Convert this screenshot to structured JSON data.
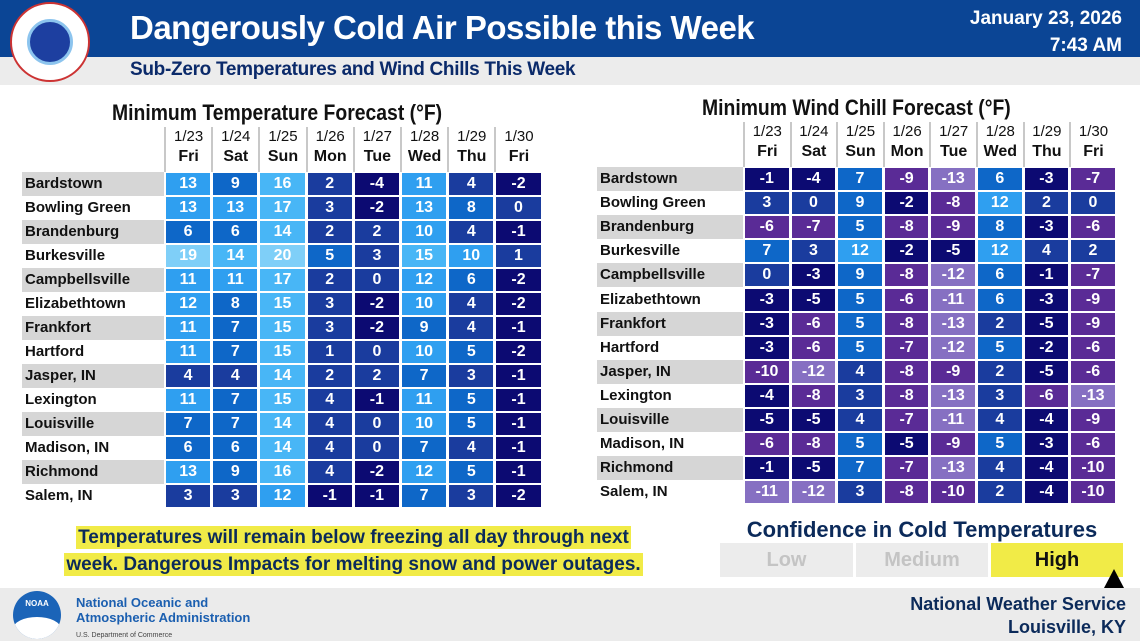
{
  "header": {
    "title": "Dangerously Cold Air Possible this Week",
    "subtitle": "Sub-Zero Temperatures and Wind Chills This Week",
    "date": "January 23, 2026",
    "time": "7:43 AM",
    "logo_text": "NATIONAL WEATHER SERVICE"
  },
  "columns": [
    {
      "date": "1/23",
      "day": "Fri"
    },
    {
      "date": "1/24",
      "day": "Sat"
    },
    {
      "date": "1/25",
      "day": "Sun"
    },
    {
      "date": "1/26",
      "day": "Mon"
    },
    {
      "date": "1/27",
      "day": "Tue"
    },
    {
      "date": "1/28",
      "day": "Wed"
    },
    {
      "date": "1/29",
      "day": "Thu"
    },
    {
      "date": "1/30",
      "day": "Fri"
    }
  ],
  "cities": [
    "Bardstown",
    "Bowling Green",
    "Brandenburg",
    "Burkesville",
    "Campbellsville",
    "Elizabethtown",
    "Frankfort",
    "Hartford",
    "Jasper, IN",
    "Lexington",
    "Louisville",
    "Madison, IN",
    "Richmond",
    "Salem, IN"
  ],
  "min_temp": {
    "title": "Minimum Temperature Forecast (°F)",
    "values": [
      [
        13,
        9,
        16,
        2,
        -4,
        11,
        4,
        -2
      ],
      [
        13,
        13,
        17,
        3,
        -2,
        13,
        8,
        0
      ],
      [
        6,
        6,
        14,
        2,
        2,
        10,
        4,
        -1
      ],
      [
        19,
        14,
        20,
        5,
        3,
        15,
        10,
        1
      ],
      [
        11,
        11,
        17,
        2,
        0,
        12,
        6,
        -2
      ],
      [
        12,
        8,
        15,
        3,
        -2,
        10,
        4,
        -2
      ],
      [
        11,
        7,
        15,
        3,
        -2,
        9,
        4,
        -1
      ],
      [
        11,
        7,
        15,
        1,
        0,
        10,
        5,
        -2
      ],
      [
        4,
        4,
        14,
        2,
        2,
        7,
        3,
        -1
      ],
      [
        11,
        7,
        15,
        4,
        -1,
        11,
        5,
        -1
      ],
      [
        7,
        7,
        14,
        4,
        0,
        10,
        5,
        -1
      ],
      [
        6,
        6,
        14,
        4,
        0,
        7,
        4,
        -1
      ],
      [
        13,
        9,
        16,
        4,
        -2,
        12,
        5,
        -1
      ],
      [
        3,
        3,
        12,
        -1,
        -1,
        7,
        3,
        -2
      ]
    ]
  },
  "wind_chill": {
    "title": "Minimum Wind Chill Forecast (°F)",
    "values": [
      [
        -1,
        -4,
        7,
        -9,
        -13,
        6,
        -3,
        -7
      ],
      [
        3,
        0,
        9,
        -2,
        -8,
        12,
        2,
        0
      ],
      [
        -6,
        -7,
        5,
        -8,
        -9,
        8,
        -3,
        -6
      ],
      [
        7,
        3,
        12,
        -2,
        -5,
        12,
        4,
        2
      ],
      [
        0,
        -3,
        9,
        -8,
        -12,
        6,
        -1,
        -7
      ],
      [
        -3,
        -5,
        5,
        -6,
        -11,
        6,
        -3,
        -9
      ],
      [
        -3,
        -6,
        5,
        -8,
        -13,
        2,
        -5,
        -9
      ],
      [
        -3,
        -6,
        5,
        -7,
        -12,
        5,
        -2,
        -6
      ],
      [
        -10,
        -12,
        4,
        -8,
        -9,
        2,
        -5,
        -6
      ],
      [
        -4,
        -8,
        3,
        -8,
        -13,
        3,
        -6,
        -13
      ],
      [
        -5,
        -5,
        4,
        -7,
        -11,
        4,
        -4,
        -9
      ],
      [
        -6,
        -8,
        5,
        -5,
        -9,
        5,
        -3,
        -6
      ],
      [
        -1,
        -5,
        7,
        -7,
        -13,
        4,
        -4,
        -10
      ],
      [
        -11,
        -12,
        3,
        -8,
        -10,
        2,
        -4,
        -10
      ]
    ]
  },
  "color_scale": [
    {
      "min": -99,
      "color": "#8670c2"
    },
    {
      "min": -10,
      "color": "#5a2b96"
    },
    {
      "min": -5,
      "color": "#0c0a72"
    },
    {
      "min": 0,
      "color": "#1a3c9e"
    },
    {
      "min": 5,
      "color": "#0e67c8"
    },
    {
      "min": 10,
      "color": "#2f9ff0"
    },
    {
      "min": 14,
      "color": "#48b6f6"
    },
    {
      "min": 18,
      "color": "#7fcff8"
    }
  ],
  "note": {
    "line1": "Temperatures will remain below freezing all day through next",
    "line2": "week. Dangerous Impacts for melting snow and power outages."
  },
  "confidence": {
    "title": "Confidence in Cold Temperatures",
    "levels": [
      "Low",
      "Medium",
      "High"
    ],
    "selected": "High",
    "highlight_color": "#f1eb47"
  },
  "footer": {
    "noaa_logo_text": "NOAA",
    "org_line1": "National Oceanic and",
    "org_line2": "Atmospheric Administration",
    "dept": "U.S. Department of Commerce",
    "office_line1": "National Weather Service",
    "office_line2": "Louisville, KY"
  }
}
